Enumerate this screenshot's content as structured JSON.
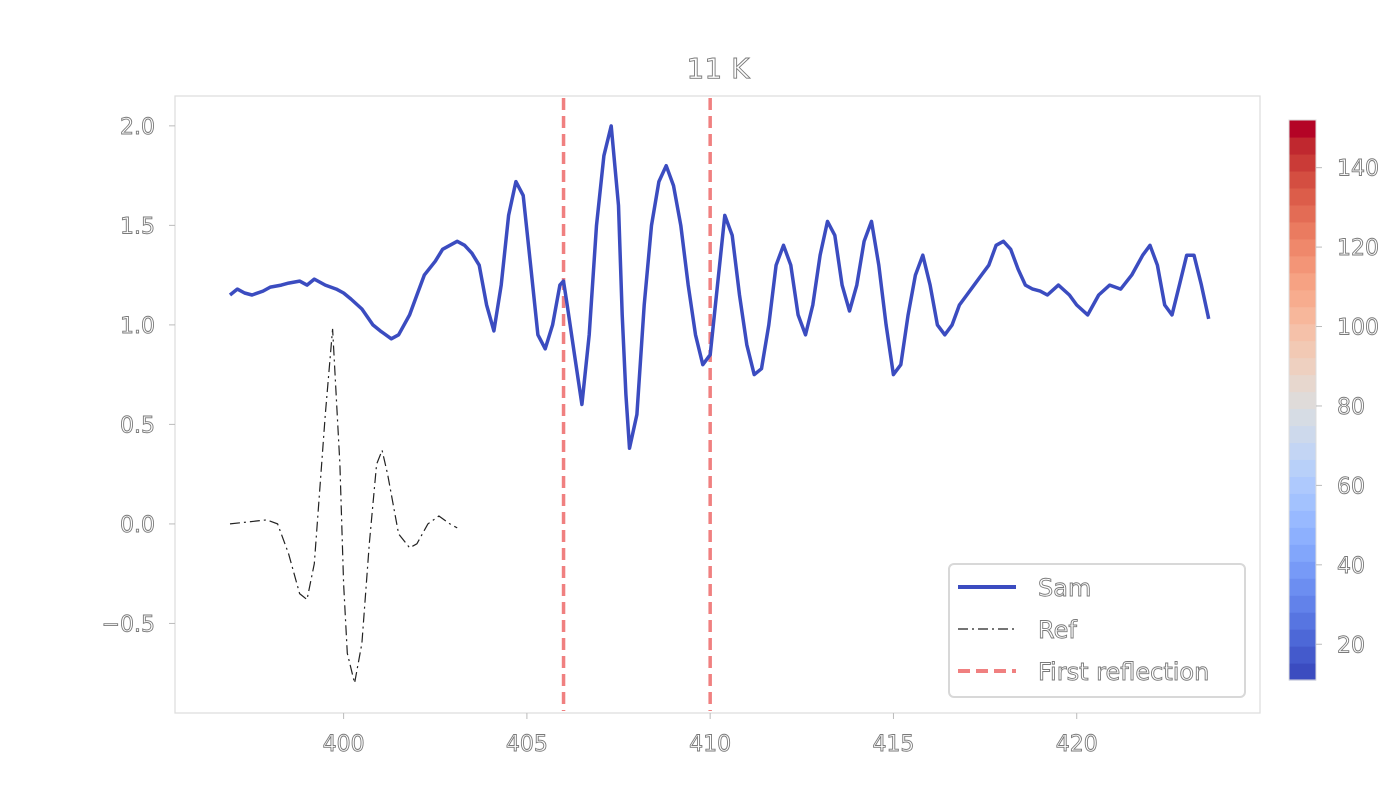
{
  "chart_data": {
    "type": "line",
    "title": "11 K",
    "xlabel": "",
    "ylabel": "",
    "xlim": [
      395.4,
      425.0
    ],
    "ylim": [
      -0.95,
      2.15
    ],
    "xticks": [
      400,
      405,
      410,
      415,
      420
    ],
    "yticks": [
      -0.5,
      0.0,
      0.5,
      1.0,
      1.5,
      2.0
    ],
    "ytick_labels": [
      "−0.5",
      "0.0",
      "0.5",
      "1.0",
      "1.5",
      "2.0"
    ],
    "grid": false,
    "legend_placement": "lower-right",
    "series": [
      {
        "name": "Sam",
        "color": "#3b4cc0",
        "style": "solid",
        "x": [
          396.9,
          397.1,
          397.3,
          397.5,
          397.8,
          398.0,
          398.3,
          398.5,
          398.8,
          399.0,
          399.2,
          399.5,
          399.8,
          400.0,
          400.2,
          400.5,
          400.8,
          401.0,
          401.3,
          401.5,
          401.8,
          402.0,
          402.2,
          402.5,
          402.7,
          402.9,
          403.1,
          403.3,
          403.5,
          403.7,
          403.9,
          404.1,
          404.3,
          404.5,
          404.7,
          404.9,
          405.1,
          405.3,
          405.5,
          405.7,
          405.9,
          406.0,
          406.1,
          406.3,
          406.5,
          406.7,
          406.9,
          407.1,
          407.3,
          407.5,
          407.6,
          407.7,
          407.8,
          408.0,
          408.2,
          408.4,
          408.6,
          408.8,
          409.0,
          409.2,
          409.4,
          409.6,
          409.8,
          410.0,
          410.2,
          410.4,
          410.6,
          410.8,
          411.0,
          411.2,
          411.4,
          411.6,
          411.8,
          412.0,
          412.2,
          412.4,
          412.6,
          412.8,
          413.0,
          413.2,
          413.4,
          413.6,
          413.8,
          414.0,
          414.2,
          414.4,
          414.6,
          414.8,
          415.0,
          415.2,
          415.4,
          415.6,
          415.8,
          416.0,
          416.2,
          416.4,
          416.6,
          416.8,
          417.0,
          417.2,
          417.4,
          417.6,
          417.8,
          418.0,
          418.2,
          418.4,
          418.6,
          418.8,
          419.0,
          419.2,
          419.5,
          419.8,
          420.0,
          420.3,
          420.6,
          420.9,
          421.2,
          421.5,
          421.8,
          422.0,
          422.2,
          422.4,
          422.6,
          422.8,
          423.0,
          423.2,
          423.4,
          423.6
        ],
        "y": [
          1.15,
          1.18,
          1.16,
          1.15,
          1.17,
          1.19,
          1.2,
          1.21,
          1.22,
          1.2,
          1.23,
          1.2,
          1.18,
          1.16,
          1.13,
          1.08,
          1.0,
          0.97,
          0.93,
          0.95,
          1.05,
          1.15,
          1.25,
          1.32,
          1.38,
          1.4,
          1.42,
          1.4,
          1.36,
          1.3,
          1.1,
          0.97,
          1.2,
          1.55,
          1.72,
          1.65,
          1.3,
          0.95,
          0.88,
          1.0,
          1.2,
          1.22,
          1.1,
          0.85,
          0.6,
          0.95,
          1.5,
          1.85,
          2.0,
          1.6,
          1.05,
          0.65,
          0.38,
          0.55,
          1.1,
          1.5,
          1.72,
          1.8,
          1.7,
          1.5,
          1.2,
          0.95,
          0.8,
          0.85,
          1.2,
          1.55,
          1.45,
          1.15,
          0.9,
          0.75,
          0.78,
          1.0,
          1.3,
          1.4,
          1.3,
          1.05,
          0.95,
          1.1,
          1.35,
          1.52,
          1.45,
          1.2,
          1.07,
          1.2,
          1.42,
          1.52,
          1.3,
          1.0,
          0.75,
          0.8,
          1.05,
          1.25,
          1.35,
          1.2,
          1.0,
          0.95,
          1.0,
          1.1,
          1.15,
          1.2,
          1.25,
          1.3,
          1.4,
          1.42,
          1.38,
          1.28,
          1.2,
          1.18,
          1.17,
          1.15,
          1.2,
          1.15,
          1.1,
          1.05,
          1.15,
          1.2,
          1.18,
          1.25,
          1.35,
          1.4,
          1.3,
          1.1,
          1.05,
          1.2,
          1.35,
          1.35,
          1.2,
          1.03
        ]
      },
      {
        "name": "Ref",
        "color": "#222222",
        "style": "dashdot",
        "x": [
          396.9,
          397.4,
          397.9,
          398.2,
          398.5,
          398.8,
          399.0,
          399.2,
          399.5,
          399.7,
          399.9,
          400.0,
          400.1,
          400.3,
          400.5,
          400.7,
          400.9,
          401.05,
          401.2,
          401.5,
          401.8,
          402.0,
          402.3,
          402.6,
          402.9,
          403.1
        ],
        "y": [
          0.0,
          0.01,
          0.02,
          0.0,
          -0.15,
          -0.35,
          -0.38,
          -0.2,
          0.55,
          0.98,
          0.3,
          -0.3,
          -0.65,
          -0.8,
          -0.6,
          -0.1,
          0.3,
          0.37,
          0.25,
          -0.05,
          -0.12,
          -0.1,
          0.0,
          0.04,
          0.0,
          -0.02
        ]
      },
      {
        "name": "First reflection",
        "color": "#f08080",
        "style": "dashed",
        "vlines": [
          406.0,
          410.0
        ]
      }
    ],
    "colorbar": {
      "vmin": 11,
      "vmax": 152,
      "ticks": [
        20,
        40,
        60,
        80,
        100,
        120,
        140
      ],
      "colors": [
        "#3b4cc0",
        "#445acc",
        "#4d68d7",
        "#5775e1",
        "#6282ea",
        "#6c8ef1",
        "#779af7",
        "#82a6fb",
        "#8db0fe",
        "#98b9ff",
        "#a3c2fe",
        "#aec9fd",
        "#b8d0f9",
        "#c3d5f4",
        "#cdd9ec",
        "#d6dce4",
        "#dfdbd9",
        "#e7d7ce",
        "#eed0c0",
        "#f2c9b4",
        "#f5c1a9",
        "#f7b79b",
        "#f7ac8e",
        "#f6a283",
        "#f39577",
        "#ef886b",
        "#ea7b60",
        "#e36c55",
        "#dc5d4a",
        "#d44e41",
        "#ca3b37",
        "#c0282f",
        "#b40426"
      ]
    }
  }
}
